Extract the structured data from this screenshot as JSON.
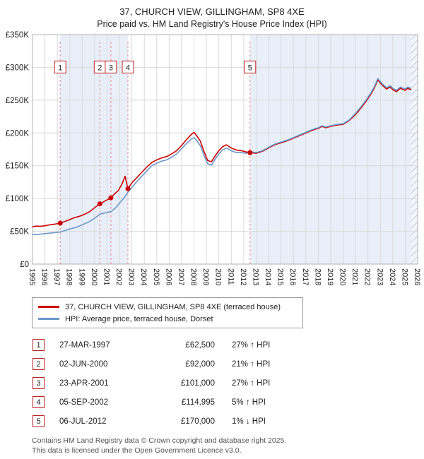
{
  "title": "37, CHURCH VIEW, GILLINGHAM, SP8 4XE",
  "subtitle": "Price paid vs. HM Land Registry's House Price Index (HPI)",
  "legend": {
    "items": [
      {
        "label": "37, CHURCH VIEW, GILLINGHAM, SP8 4XE (terraced house)",
        "color": "#cc0000"
      },
      {
        "label": "HPI: Average price, terraced house, Dorset",
        "color": "#6b96c8"
      }
    ]
  },
  "chart_data": {
    "type": "line",
    "x_range": [
      1995,
      2026
    ],
    "y_range": [
      0,
      350000
    ],
    "y_tick_values": [
      0,
      50000,
      100000,
      150000,
      200000,
      250000,
      300000,
      350000
    ],
    "y_tick_labels": [
      "£0",
      "£50K",
      "£100K",
      "£150K",
      "£200K",
      "£250K",
      "£300K",
      "£350K"
    ],
    "x_ticks": [
      1995,
      1996,
      1997,
      1998,
      1999,
      2000,
      2001,
      2002,
      2003,
      2004,
      2005,
      2006,
      2007,
      2008,
      2009,
      2010,
      2011,
      2012,
      2013,
      2014,
      2015,
      2016,
      2017,
      2018,
      2019,
      2020,
      2021,
      2022,
      2023,
      2024,
      2025,
      2026
    ],
    "grid": true,
    "legend_position": "below",
    "bands": [
      [
        1997.23,
        2002.68
      ],
      [
        2012.51,
        2026
      ]
    ],
    "future_region": [
      2025.45,
      2026
    ],
    "marker_y": 300000,
    "colors": {
      "property": "#cc0000",
      "hpi": "#6b96c8",
      "band": "#e9eff9",
      "grid": "#d9d9d9",
      "sale_line": "#e08a8a",
      "hatch": "#c3cad6",
      "border": "#b0b0b0"
    },
    "series": [
      {
        "name": "37, CHURCH VIEW, GILLINGHAM, SP8 4XE (terraced house)",
        "color": "#cc0000",
        "points": [
          [
            1995.0,
            57000
          ],
          [
            1995.3,
            58000
          ],
          [
            1995.6,
            57500
          ],
          [
            1996.0,
            58500
          ],
          [
            1996.4,
            60000
          ],
          [
            1996.8,
            61000
          ],
          [
            1997.23,
            62500
          ],
          [
            1997.6,
            65000
          ],
          [
            1998.0,
            68000
          ],
          [
            1998.4,
            71000
          ],
          [
            1998.8,
            73000
          ],
          [
            1999.2,
            76000
          ],
          [
            1999.6,
            80000
          ],
          [
            2000.0,
            86000
          ],
          [
            2000.42,
            92000
          ],
          [
            2000.8,
            96000
          ],
          [
            2001.31,
            101000
          ],
          [
            2001.6,
            107000
          ],
          [
            2001.9,
            112000
          ],
          [
            2002.2,
            122000
          ],
          [
            2002.45,
            134000
          ],
          [
            2002.68,
            114995
          ],
          [
            2003.0,
            124000
          ],
          [
            2003.4,
            132000
          ],
          [
            2003.8,
            140000
          ],
          [
            2004.2,
            148000
          ],
          [
            2004.6,
            155000
          ],
          [
            2005.0,
            159000
          ],
          [
            2005.4,
            162000
          ],
          [
            2005.8,
            164000
          ],
          [
            2006.2,
            168000
          ],
          [
            2006.6,
            173000
          ],
          [
            2007.0,
            181000
          ],
          [
            2007.4,
            190000
          ],
          [
            2007.8,
            198000
          ],
          [
            2008.0,
            201000
          ],
          [
            2008.2,
            196000
          ],
          [
            2008.5,
            188000
          ],
          [
            2008.8,
            172000
          ],
          [
            2009.1,
            158000
          ],
          [
            2009.4,
            156000
          ],
          [
            2009.7,
            165000
          ],
          [
            2010.0,
            173000
          ],
          [
            2010.3,
            179000
          ],
          [
            2010.6,
            182000
          ],
          [
            2011.0,
            177000
          ],
          [
            2011.4,
            174000
          ],
          [
            2011.8,
            173000
          ],
          [
            2012.2,
            171000
          ],
          [
            2012.51,
            170000
          ],
          [
            2013.0,
            169000
          ],
          [
            2013.5,
            172000
          ],
          [
            2014.0,
            177000
          ],
          [
            2014.5,
            182000
          ],
          [
            2015.0,
            185000
          ],
          [
            2015.5,
            188000
          ],
          [
            2016.0,
            192000
          ],
          [
            2016.5,
            196000
          ],
          [
            2017.0,
            200000
          ],
          [
            2017.5,
            204000
          ],
          [
            2018.0,
            207000
          ],
          [
            2018.3,
            210000
          ],
          [
            2018.6,
            208000
          ],
          [
            2019.0,
            210000
          ],
          [
            2019.5,
            212000
          ],
          [
            2020.0,
            213000
          ],
          [
            2020.5,
            219000
          ],
          [
            2021.0,
            228000
          ],
          [
            2021.4,
            237000
          ],
          [
            2021.8,
            247000
          ],
          [
            2022.2,
            258000
          ],
          [
            2022.5,
            268000
          ],
          [
            2022.8,
            281000
          ],
          [
            2023.0,
            276000
          ],
          [
            2023.2,
            272000
          ],
          [
            2023.5,
            267000
          ],
          [
            2023.8,
            270000
          ],
          [
            2024.0,
            266000
          ],
          [
            2024.3,
            263000
          ],
          [
            2024.6,
            268000
          ],
          [
            2025.0,
            265000
          ],
          [
            2025.2,
            268000
          ],
          [
            2025.45,
            266000
          ]
        ]
      },
      {
        "name": "HPI: Average price, terraced house, Dorset",
        "color": "#6b96c8",
        "points": [
          [
            1995.0,
            45000
          ],
          [
            1995.5,
            45500
          ],
          [
            1996.0,
            46500
          ],
          [
            1996.5,
            47500
          ],
          [
            1997.0,
            48500
          ],
          [
            1997.23,
            49000
          ],
          [
            1997.6,
            51000
          ],
          [
            1998.0,
            53500
          ],
          [
            1998.5,
            56000
          ],
          [
            1999.0,
            60000
          ],
          [
            1999.5,
            64000
          ],
          [
            2000.0,
            70000
          ],
          [
            2000.42,
            76000
          ],
          [
            2000.8,
            78000
          ],
          [
            2001.31,
            80000
          ],
          [
            2001.7,
            86000
          ],
          [
            2002.0,
            93000
          ],
          [
            2002.4,
            102000
          ],
          [
            2002.68,
            109500
          ],
          [
            2003.0,
            117000
          ],
          [
            2003.4,
            126000
          ],
          [
            2003.8,
            134000
          ],
          [
            2004.2,
            142000
          ],
          [
            2004.6,
            150000
          ],
          [
            2005.0,
            154000
          ],
          [
            2005.4,
            157000
          ],
          [
            2005.8,
            159000
          ],
          [
            2006.2,
            163000
          ],
          [
            2006.6,
            168000
          ],
          [
            2007.0,
            176000
          ],
          [
            2007.4,
            184000
          ],
          [
            2007.8,
            191000
          ],
          [
            2008.0,
            193000
          ],
          [
            2008.2,
            189000
          ],
          [
            2008.5,
            181000
          ],
          [
            2008.8,
            166000
          ],
          [
            2009.1,
            153000
          ],
          [
            2009.4,
            151000
          ],
          [
            2009.7,
            160000
          ],
          [
            2010.0,
            168000
          ],
          [
            2010.3,
            174000
          ],
          [
            2010.6,
            177000
          ],
          [
            2011.0,
            173000
          ],
          [
            2011.4,
            170000
          ],
          [
            2011.8,
            170000
          ],
          [
            2012.2,
            169000
          ],
          [
            2012.51,
            171500
          ],
          [
            2013.0,
            170000
          ],
          [
            2013.5,
            173000
          ],
          [
            2014.0,
            178000
          ],
          [
            2014.5,
            183000
          ],
          [
            2015.0,
            186000
          ],
          [
            2015.5,
            189000
          ],
          [
            2016.0,
            193000
          ],
          [
            2016.5,
            197000
          ],
          [
            2017.0,
            201000
          ],
          [
            2017.5,
            205000
          ],
          [
            2018.0,
            208000
          ],
          [
            2018.3,
            211000
          ],
          [
            2018.6,
            209000
          ],
          [
            2019.0,
            211000
          ],
          [
            2019.5,
            213000
          ],
          [
            2020.0,
            214000
          ],
          [
            2020.5,
            220000
          ],
          [
            2021.0,
            230000
          ],
          [
            2021.4,
            239000
          ],
          [
            2021.8,
            249000
          ],
          [
            2022.2,
            260000
          ],
          [
            2022.5,
            270000
          ],
          [
            2022.8,
            283000
          ],
          [
            2023.0,
            278000
          ],
          [
            2023.2,
            274000
          ],
          [
            2023.5,
            269000
          ],
          [
            2023.8,
            272000
          ],
          [
            2024.0,
            268000
          ],
          [
            2024.3,
            265000
          ],
          [
            2024.6,
            270000
          ],
          [
            2025.0,
            267000
          ],
          [
            2025.2,
            270000
          ],
          [
            2025.45,
            268000
          ]
        ]
      }
    ],
    "sales": [
      {
        "n": 1,
        "x": 1997.23,
        "price": 62500
      },
      {
        "n": 2,
        "x": 2000.42,
        "price": 92000
      },
      {
        "n": 3,
        "x": 2001.31,
        "price": 101000
      },
      {
        "n": 4,
        "x": 2002.68,
        "price": 114995
      },
      {
        "n": 5,
        "x": 2012.51,
        "price": 170000
      }
    ]
  },
  "table": {
    "rows": [
      {
        "n": "1",
        "date": "27-MAR-1997",
        "price": "£62,500",
        "hpi": "27% ↑ HPI"
      },
      {
        "n": "2",
        "date": "02-JUN-2000",
        "price": "£92,000",
        "hpi": "21% ↑ HPI"
      },
      {
        "n": "3",
        "date": "23-APR-2001",
        "price": "£101,000",
        "hpi": "27% ↑ HPI"
      },
      {
        "n": "4",
        "date": "05-SEP-2002",
        "price": "£114,995",
        "hpi": "5% ↑ HPI"
      },
      {
        "n": "5",
        "date": "06-JUL-2012",
        "price": "£170,000",
        "hpi": "1% ↓ HPI"
      }
    ]
  },
  "footer": {
    "line1": "Contains HM Land Registry data © Crown copyright and database right 2025.",
    "line2": "This data is licensed under the Open Government Licence v3.0."
  }
}
